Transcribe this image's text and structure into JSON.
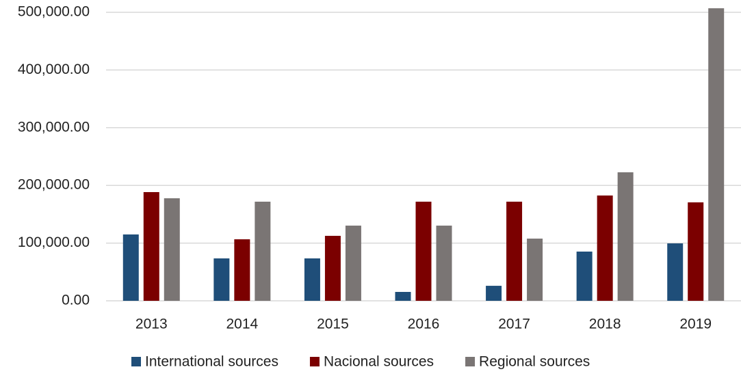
{
  "chart_data": {
    "type": "bar",
    "categories": [
      "2013",
      "2014",
      "2015",
      "2016",
      "2017",
      "2018",
      "2019"
    ],
    "series": [
      {
        "name": "International sources",
        "color": "#1f4e79",
        "values": [
          115000,
          73500,
          73500,
          15400,
          26000,
          85300,
          99500
        ]
      },
      {
        "name": "Nacional sources",
        "color": "#7b0000",
        "values": [
          188400,
          106600,
          112600,
          171800,
          171800,
          182500,
          170600
        ]
      },
      {
        "name": "Regional sources",
        "color": "#7a7574",
        "values": [
          177700,
          171800,
          130300,
          130300,
          107800,
          222700,
          507000
        ]
      }
    ],
    "ylim": [
      0,
      500000
    ],
    "yticks": [
      {
        "value": 0,
        "label": "0.00"
      },
      {
        "value": 100000,
        "label": "100,000.00"
      },
      {
        "value": 200000,
        "label": "200,000.00"
      },
      {
        "value": 300000,
        "label": "300,000.00"
      },
      {
        "value": 400000,
        "label": "400,000.00"
      },
      {
        "value": 500000,
        "label": "500,000.00"
      }
    ],
    "grid": true,
    "legend": "bottom"
  }
}
